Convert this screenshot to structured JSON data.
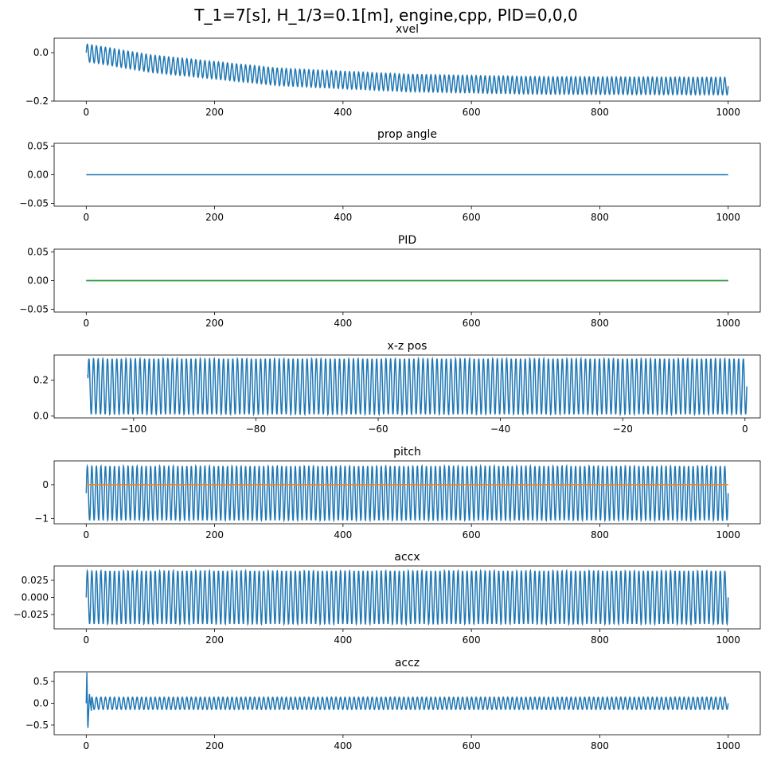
{
  "figure": {
    "suptitle": "T_1=7[s], H_1/3=0.1[m], engine,cpp, PID=0,0,0"
  },
  "chart_data": [
    {
      "type": "line",
      "title": "xvel",
      "xlim": [
        -50,
        1050
      ],
      "ylim": [
        -0.2,
        0.06
      ],
      "xticks": [
        0,
        200,
        400,
        600,
        800,
        1000
      ],
      "xtick_labels": [
        "0",
        "200",
        "400",
        "600",
        "800",
        "1000"
      ],
      "yticks": [
        -0.2,
        0.0
      ],
      "ytick_labels": [
        "−0.2",
        "0.0"
      ],
      "grid": false,
      "series": [
        {
          "color": "#1f77b4",
          "x_range": [
            0,
            1000
          ],
          "cycles": 142,
          "amplitude": 0.036,
          "offset": [
            [
              0,
              0.0
            ],
            [
              100,
              -0.045
            ],
            [
              300,
              -0.1
            ],
            [
              500,
              -0.125
            ],
            [
              700,
              -0.135
            ],
            [
              1000,
              -0.138
            ]
          ]
        }
      ]
    },
    {
      "type": "line",
      "title": "prop angle",
      "xlim": [
        -50,
        1050
      ],
      "ylim": [
        -0.055,
        0.055
      ],
      "xticks": [
        0,
        200,
        400,
        600,
        800,
        1000
      ],
      "xtick_labels": [
        "0",
        "200",
        "400",
        "600",
        "800",
        "1000"
      ],
      "yticks": [
        -0.05,
        0.0,
        0.05
      ],
      "ytick_labels": [
        "−0.05",
        "0.00",
        "0.05"
      ],
      "grid": false,
      "series": [
        {
          "color": "#1f77b4",
          "x": [
            0,
            1000
          ],
          "y": [
            0.0,
            0.0
          ]
        }
      ]
    },
    {
      "type": "line",
      "title": "PID",
      "xlim": [
        -50,
        1050
      ],
      "ylim": [
        -0.055,
        0.055
      ],
      "xticks": [
        0,
        200,
        400,
        600,
        800,
        1000
      ],
      "xtick_labels": [
        "0",
        "200",
        "400",
        "600",
        "800",
        "1000"
      ],
      "yticks": [
        -0.05,
        0.0,
        0.05
      ],
      "ytick_labels": [
        "−0.05",
        "0.00",
        "0.05"
      ],
      "grid": false,
      "series": [
        {
          "color": "#1f77b4",
          "x": [
            0,
            1000
          ],
          "y": [
            0.0,
            0.0
          ]
        },
        {
          "color": "#2ca02c",
          "x": [
            0,
            1000
          ],
          "y": [
            0.0,
            0.0
          ]
        }
      ]
    },
    {
      "type": "line",
      "title": "x-z pos",
      "xlim": [
        -113,
        2.5
      ],
      "ylim": [
        -0.01,
        0.34
      ],
      "xticks": [
        -100,
        -80,
        -60,
        -40,
        -20,
        0
      ],
      "xtick_labels": [
        "−100",
        "−80",
        "−60",
        "−40",
        "−20",
        "0"
      ],
      "yticks": [
        0.0,
        0.2
      ],
      "ytick_labels": [
        "0.0",
        "0.2"
      ],
      "grid": false,
      "series": [
        {
          "color": "#1f77b4",
          "x_range": [
            -107.5,
            0.3
          ],
          "cycles": 142,
          "y_min": 0.01,
          "y_max": 0.32,
          "y_start": 0.23
        }
      ]
    },
    {
      "type": "line",
      "title": "pitch",
      "xlim": [
        -50,
        1050
      ],
      "ylim": [
        -1.15,
        0.7
      ],
      "xticks": [
        0,
        200,
        400,
        600,
        800,
        1000
      ],
      "xtick_labels": [
        "0",
        "200",
        "400",
        "600",
        "800",
        "1000"
      ],
      "yticks": [
        -1,
        0
      ],
      "ytick_labels": [
        "−1",
        "0"
      ],
      "grid": false,
      "series": [
        {
          "color": "#1f77b4",
          "x_range": [
            0,
            1000
          ],
          "cycles": 142,
          "y_min": -1.05,
          "y_max": 0.55
        },
        {
          "color": "#ff7f0e",
          "x": [
            0,
            1000
          ],
          "y": [
            0.0,
            0.0
          ]
        }
      ]
    },
    {
      "type": "line",
      "title": "accx",
      "xlim": [
        -50,
        1050
      ],
      "ylim": [
        -0.046,
        0.046
      ],
      "xticks": [
        0,
        200,
        400,
        600,
        800,
        1000
      ],
      "xtick_labels": [
        "0",
        "200",
        "400",
        "600",
        "800",
        "1000"
      ],
      "yticks": [
        -0.025,
        0.0,
        0.025
      ],
      "ytick_labels": [
        "−0.025",
        "0.000",
        "0.025"
      ],
      "grid": false,
      "series": [
        {
          "color": "#1f77b4",
          "x_range": [
            0,
            1000
          ],
          "cycles": 142,
          "amplitude": 0.039,
          "offset": 0.0
        }
      ]
    },
    {
      "type": "line",
      "title": "accz",
      "xlim": [
        -50,
        1050
      ],
      "ylim": [
        -0.72,
        0.72
      ],
      "xticks": [
        0,
        200,
        400,
        600,
        800,
        1000
      ],
      "xtick_labels": [
        "0",
        "200",
        "400",
        "600",
        "800",
        "1000"
      ],
      "yticks": [
        -0.5,
        0.0,
        0.5
      ],
      "ytick_labels": [
        "−0.5",
        "0.0",
        "0.5"
      ],
      "grid": false,
      "series": [
        {
          "color": "#1f77b4",
          "x_range": [
            0,
            1000
          ],
          "cycles": 142,
          "amplitude": 0.14,
          "offset": 0.0,
          "spike": [
            [
              0,
              0.0
            ],
            [
              1,
              0.67
            ],
            [
              2.5,
              -0.65
            ],
            [
              5,
              0.25
            ],
            [
              8,
              -0.2
            ]
          ]
        }
      ]
    }
  ]
}
